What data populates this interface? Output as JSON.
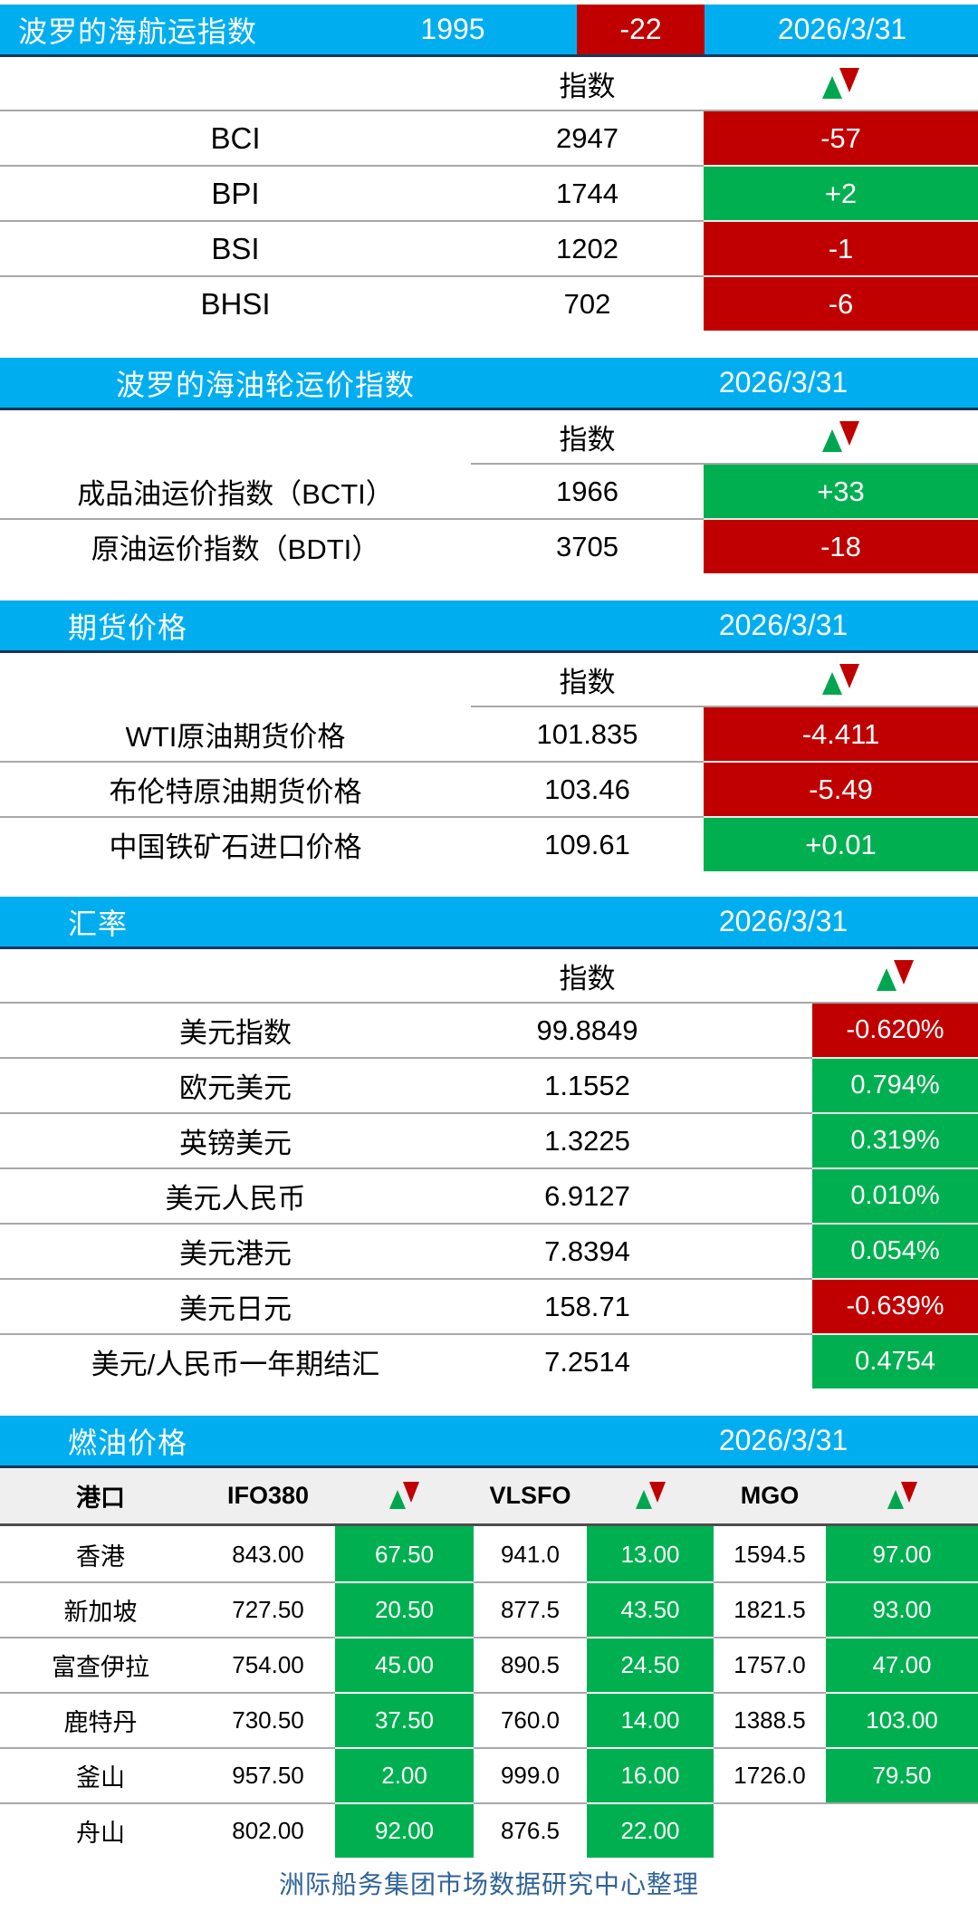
{
  "colors": {
    "header_blue": "#00AEEF",
    "down_red": "#C00000",
    "up_green": "#00B050"
  },
  "sections": [
    {
      "title": "波罗的海航运指数",
      "headline": {
        "value": "1995",
        "change": "-22",
        "dir": "down"
      },
      "date": "2026/3/31",
      "index_label": "指数",
      "rows": [
        {
          "label": "BCI",
          "value": "2947",
          "change": "-57",
          "dir": "down"
        },
        {
          "label": "BPI",
          "value": "1744",
          "change": "+2",
          "dir": "up"
        },
        {
          "label": "BSI",
          "value": "1202",
          "change": "-1",
          "dir": "down"
        },
        {
          "label": "BHSI",
          "value": "702",
          "change": "-6",
          "dir": "down"
        }
      ]
    },
    {
      "title": "波罗的海油轮运价指数",
      "date": "2026/3/31",
      "index_label": "指数",
      "rows": [
        {
          "label": "成品油运价指数（BCTI）",
          "value": "1966",
          "change": "+33",
          "dir": "up"
        },
        {
          "label": "原油运价指数（BDTI）",
          "value": "3705",
          "change": "-18",
          "dir": "down"
        }
      ]
    },
    {
      "title": "期货价格",
      "date": "2026/3/31",
      "index_label": "指数",
      "rows": [
        {
          "label": "WTI原油期货价格",
          "value": "101.835",
          "change": "-4.411",
          "dir": "down"
        },
        {
          "label": "布伦特原油期货价格",
          "value": "103.46",
          "change": "-5.49",
          "dir": "down"
        },
        {
          "label": "中国铁矿石进口价格",
          "value": "109.61",
          "change": "+0.01",
          "dir": "up"
        }
      ]
    },
    {
      "title": "汇率",
      "date": "2026/3/31",
      "index_label": "指数",
      "rows": [
        {
          "label": "美元指数",
          "value": "99.8849",
          "change": "-0.620%",
          "dir": "down"
        },
        {
          "label": "欧元美元",
          "value": "1.1552",
          "change": "0.794%",
          "dir": "up"
        },
        {
          "label": "英镑美元",
          "value": "1.3225",
          "change": "0.319%",
          "dir": "up"
        },
        {
          "label": "美元人民币",
          "value": "6.9127",
          "change": "0.010%",
          "dir": "up"
        },
        {
          "label": "美元港元",
          "value": "7.8394",
          "change": "0.054%",
          "dir": "up"
        },
        {
          "label": "美元日元",
          "value": "158.71",
          "change": "-0.639%",
          "dir": "down"
        },
        {
          "label": "美元/人民币一年期结汇",
          "value": "7.2514",
          "change": "0.4754",
          "dir": "up"
        }
      ]
    }
  ],
  "fuel": {
    "title": "燃油价格",
    "date": "2026/3/31",
    "headers": {
      "port": "港口",
      "ifo380": "IFO380",
      "vlsfo": "VLSFO",
      "mgo": "MGO"
    },
    "rows": [
      {
        "port": "香港",
        "ifo380": "843.00",
        "ifo380_chg": "67.50",
        "vlsfo": "941.0",
        "vlsfo_chg": "13.00",
        "mgo": "1594.5",
        "mgo_chg": "97.00"
      },
      {
        "port": "新加坡",
        "ifo380": "727.50",
        "ifo380_chg": "20.50",
        "vlsfo": "877.5",
        "vlsfo_chg": "43.50",
        "mgo": "1821.5",
        "mgo_chg": "93.00"
      },
      {
        "port": "富查伊拉",
        "ifo380": "754.00",
        "ifo380_chg": "45.00",
        "vlsfo": "890.5",
        "vlsfo_chg": "24.50",
        "mgo": "1757.0",
        "mgo_chg": "47.00"
      },
      {
        "port": "鹿特丹",
        "ifo380": "730.50",
        "ifo380_chg": "37.50",
        "vlsfo": "760.0",
        "vlsfo_chg": "14.00",
        "mgo": "1388.5",
        "mgo_chg": "103.00"
      },
      {
        "port": "釜山",
        "ifo380": "957.50",
        "ifo380_chg": "2.00",
        "vlsfo": "999.0",
        "vlsfo_chg": "16.00",
        "mgo": "1726.0",
        "mgo_chg": "79.50"
      },
      {
        "port": "舟山",
        "ifo380": "802.00",
        "ifo380_chg": "92.00",
        "vlsfo": "876.5",
        "vlsfo_chg": "22.00",
        "mgo": "",
        "mgo_chg": ""
      }
    ]
  },
  "footer": "洲际船务集团市场数据研究中心整理"
}
